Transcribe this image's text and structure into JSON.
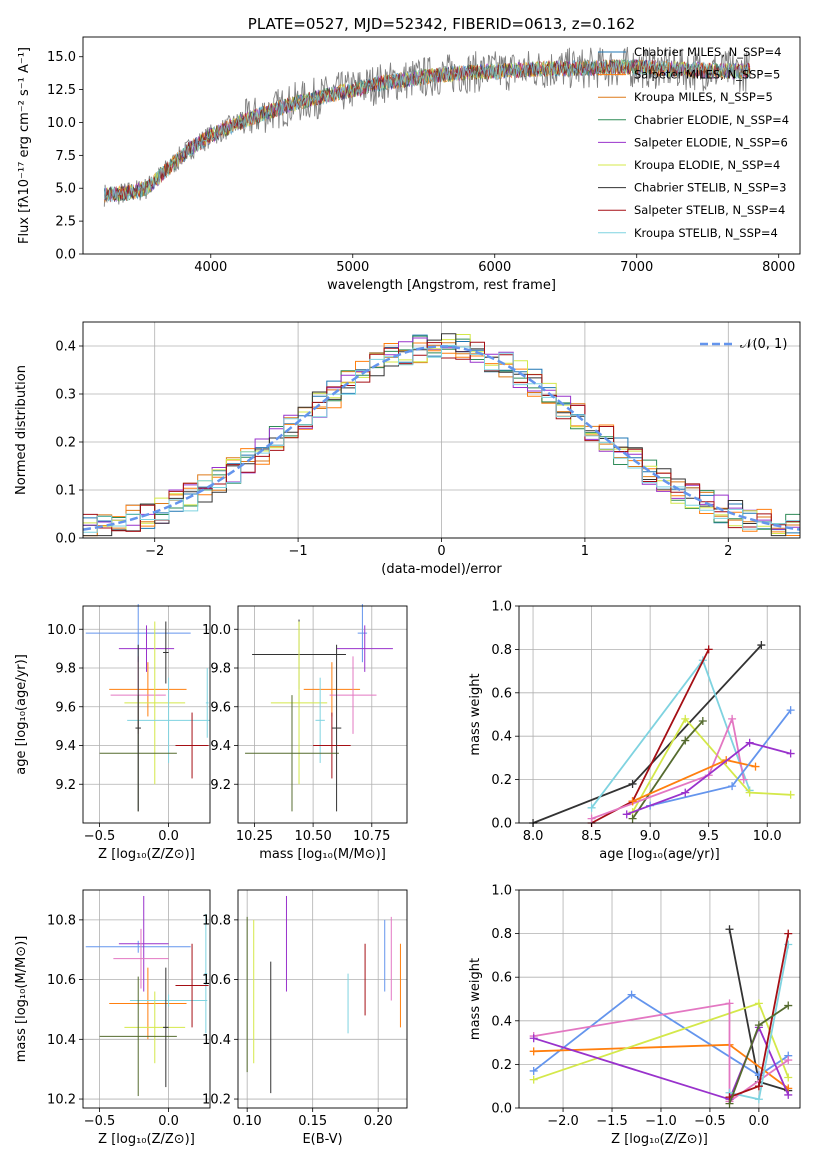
{
  "colors": {
    "axis": "#000000",
    "grid": "#b0b0b0",
    "data_spectrum": "#808080",
    "normal_curve": "#6495ed"
  },
  "chart_data": [
    {
      "id": "spectrum",
      "type": "line",
      "title": "PLATE=0527, MJD=52342, FIBERID=0613, z=0.162",
      "xlabel": "wavelength [Angstrom, rest frame]",
      "ylabel": "Flux [fλ10⁻¹⁷ erg cm⁻² s⁻¹ A⁻¹]",
      "xlim": [
        3100,
        8150
      ],
      "ylim": [
        0,
        16.5
      ],
      "xticks": [
        4000,
        5000,
        6000,
        7000,
        8000
      ],
      "yticks": [
        0.0,
        2.5,
        5.0,
        7.5,
        10.0,
        12.5,
        15.0
      ],
      "grid": false,
      "legend_position": "top-right",
      "data_curve": {
        "x": [
          3250,
          3400,
          3550,
          3700,
          3850,
          4000,
          4200,
          4400,
          4600,
          4800,
          5000,
          5200,
          5400,
          5600,
          5800,
          6000,
          6200,
          6400,
          6600,
          6800,
          7000,
          7200,
          7400,
          7600,
          7800
        ],
        "y": [
          4.5,
          4.6,
          5.0,
          6.5,
          8.0,
          9.0,
          10.0,
          10.8,
          11.5,
          12.0,
          12.5,
          13.0,
          13.3,
          13.6,
          13.8,
          13.9,
          14.0,
          14.1,
          14.1,
          14.2,
          14.2,
          14.1,
          14.0,
          13.9,
          13.9
        ]
      },
      "series": [
        {
          "name": "Chabrier MILES, N_SSP=4",
          "color": "#1f77b4"
        },
        {
          "name": "Salpeter MILES, N_SSP=5",
          "color": "#ff7f0e"
        },
        {
          "name": "Kroupa MILES, N_SSP=5",
          "color": "#dd7a1a"
        },
        {
          "name": "Chabrier ELODIE, N_SSP=4",
          "color": "#2e8b57"
        },
        {
          "name": "Salpeter ELODIE, N_SSP=6",
          "color": "#9932cc"
        },
        {
          "name": "Kroupa ELODIE, N_SSP=4",
          "color": "#d4e84a"
        },
        {
          "name": "Chabrier STELIB, N_SSP=3",
          "color": "#333333"
        },
        {
          "name": "Salpeter STELIB, N_SSP=4",
          "color": "#a50f15"
        },
        {
          "name": "Kroupa STELIB, N_SSP=4",
          "color": "#7fd3e0"
        }
      ]
    },
    {
      "id": "residuals",
      "type": "area",
      "xlabel": "(data-model)/error",
      "ylabel": "Normed distribution",
      "xlim": [
        -2.5,
        2.5
      ],
      "ylim": [
        0,
        0.45
      ],
      "xticks": [
        -2,
        -1,
        0,
        1,
        2
      ],
      "yticks": [
        0.0,
        0.1,
        0.2,
        0.3,
        0.4
      ],
      "grid": true,
      "legend": "𝒩(0, 1)",
      "legend_position": "top-right",
      "normal": {
        "mu": 0,
        "sigma": 1
      },
      "bin_width": 0.1
    },
    {
      "id": "age_vs_Z",
      "type": "scatter",
      "xlabel": "Z [log₁₀(Z/Z⊙)]",
      "ylabel": "age  [log₁₀(age/yr)]",
      "xlim": [
        -0.62,
        0.3
      ],
      "ylim": [
        9.0,
        10.12
      ],
      "xticks": [
        -0.5,
        0.0
      ],
      "yticks": [
        9.2,
        9.4,
        9.6,
        9.8,
        10.0
      ],
      "grid": true,
      "points": [
        {
          "x": -0.22,
          "xerr": 0.38,
          "y": 9.98,
          "yerr": 0.15,
          "color": "#6495ed"
        },
        {
          "x": -0.16,
          "xerr": 0.2,
          "y": 9.9,
          "yerr": 0.12,
          "color": "#9932cc"
        },
        {
          "x": -0.02,
          "xerr": 0.02,
          "y": 9.88,
          "yerr": 0.16,
          "color": "#333333"
        },
        {
          "x": -0.15,
          "xerr": 0.28,
          "y": 9.69,
          "yerr": 0.14,
          "color": "#ff7f0e"
        },
        {
          "x": -0.22,
          "xerr": 0.2,
          "y": 9.66,
          "yerr": 0.2,
          "color": "#e377c2"
        },
        {
          "x": -0.1,
          "xerr": 0.22,
          "y": 9.62,
          "yerr": 0.42,
          "color": "#d4e84a"
        },
        {
          "x": 0.28,
          "xerr": 0.01,
          "y": 9.62,
          "yerr": 0.18,
          "color": "#7fd3e0"
        },
        {
          "x": 0.0,
          "xerr": 0.3,
          "y": 9.53,
          "yerr": 0.22,
          "color": "#7fd3e0"
        },
        {
          "x": 0.17,
          "xerr": 0.12,
          "y": 9.4,
          "yerr": 0.17,
          "color": "#a50f15"
        },
        {
          "x": -0.22,
          "xerr": 0.28,
          "y": 9.36,
          "yerr": 0.3,
          "color": "#556b2f"
        },
        {
          "x": -0.22,
          "xerr": 0.02,
          "y": 9.49,
          "yerr": 0.43,
          "color": "#333333"
        }
      ]
    },
    {
      "id": "age_vs_mass",
      "type": "scatter",
      "xlabel": "mass [log₁₀(M/M⊙)]",
      "xlim": [
        10.18,
        10.9
      ],
      "ylim": [
        9.0,
        10.12
      ],
      "xticks": [
        10.25,
        10.5,
        10.75
      ],
      "yticks": [
        9.2,
        9.4,
        9.6,
        9.8,
        10.0
      ],
      "grid": true,
      "points": [
        {
          "x": 10.71,
          "xerr": 0.02,
          "y": 9.98,
          "yerr": 0.15,
          "color": "#6495ed"
        },
        {
          "x": 10.72,
          "xerr": 0.12,
          "y": 9.9,
          "yerr": 0.12,
          "color": "#9932cc"
        },
        {
          "x": 10.44,
          "xerr": 0.2,
          "y": 9.87,
          "yerr": 0.18,
          "color": "#333333"
        },
        {
          "x": 10.58,
          "xerr": 0.12,
          "y": 9.69,
          "yerr": 0.14,
          "color": "#ff7f0e"
        },
        {
          "x": 10.67,
          "xerr": 0.1,
          "y": 9.66,
          "yerr": 0.2,
          "color": "#e377c2"
        },
        {
          "x": 10.44,
          "xerr": 0.12,
          "y": 9.62,
          "yerr": 0.42,
          "color": "#d4e84a"
        },
        {
          "x": 10.53,
          "xerr": 0.02,
          "y": 9.53,
          "yerr": 0.22,
          "color": "#7fd3e0"
        },
        {
          "x": 10.58,
          "xerr": 0.08,
          "y": 9.4,
          "yerr": 0.17,
          "color": "#a50f15"
        },
        {
          "x": 10.41,
          "xerr": 0.2,
          "y": 9.36,
          "yerr": 0.3,
          "color": "#556b2f"
        },
        {
          "x": 10.6,
          "xerr": 0.02,
          "y": 9.49,
          "yerr": 0.43,
          "color": "#333333"
        }
      ]
    },
    {
      "id": "weight_vs_age",
      "type": "line",
      "xlabel": "age  [log₁₀(age/yr)]",
      "ylabel": "mass weight",
      "xlim": [
        7.88,
        10.28
      ],
      "ylim": [
        0,
        1.0
      ],
      "xticks": [
        8.0,
        8.5,
        9.0,
        9.5,
        10.0
      ],
      "yticks": [
        0.0,
        0.2,
        0.4,
        0.6,
        0.8,
        1.0
      ],
      "grid": true,
      "series": [
        {
          "color": "#333333",
          "x": [
            8.0,
            8.85,
            9.95
          ],
          "y": [
            0.0,
            0.18,
            0.82
          ]
        },
        {
          "color": "#7fd3e0",
          "x": [
            8.5,
            9.45,
            9.85
          ],
          "y": [
            0.07,
            0.75,
            0.15
          ]
        },
        {
          "color": "#a50f15",
          "x": [
            8.5,
            8.85,
            9.5
          ],
          "y": [
            0.0,
            0.1,
            0.8
          ]
        },
        {
          "color": "#d4e84a",
          "x": [
            8.85,
            9.3,
            9.85,
            10.2
          ],
          "y": [
            0.05,
            0.48,
            0.14,
            0.13
          ]
        },
        {
          "color": "#556b2f",
          "x": [
            8.85,
            9.3,
            9.45
          ],
          "y": [
            0.02,
            0.38,
            0.47
          ]
        },
        {
          "color": "#e377c2",
          "x": [
            8.5,
            9.5,
            9.7,
            9.8
          ],
          "y": [
            0.02,
            0.22,
            0.48,
            0.2
          ]
        },
        {
          "color": "#ff7f0e",
          "x": [
            8.85,
            9.65,
            9.9
          ],
          "y": [
            0.1,
            0.29,
            0.26
          ]
        },
        {
          "color": "#6495ed",
          "x": [
            9.0,
            9.7,
            10.2
          ],
          "y": [
            0.08,
            0.17,
            0.52
          ]
        },
        {
          "color": "#9932cc",
          "x": [
            8.8,
            9.3,
            9.85,
            10.2
          ],
          "y": [
            0.04,
            0.14,
            0.37,
            0.32
          ]
        }
      ]
    },
    {
      "id": "mass_vs_Z",
      "type": "scatter",
      "xlabel": "Z [log₁₀(Z/Z⊙)]",
      "ylabel": "mass [log₁₀(M/M⊙)]",
      "xlim": [
        -0.62,
        0.3
      ],
      "ylim": [
        10.17,
        10.9
      ],
      "xticks": [
        -0.5,
        0.0
      ],
      "yticks": [
        10.2,
        10.4,
        10.6,
        10.8
      ],
      "grid": true,
      "points": [
        {
          "x": -0.22,
          "xerr": 0.38,
          "y": 10.71,
          "yerr": 0.02,
          "color": "#6495ed"
        },
        {
          "x": -0.18,
          "xerr": 0.18,
          "y": 10.72,
          "yerr": 0.16,
          "color": "#9932cc"
        },
        {
          "x": -0.15,
          "xerr": 0.28,
          "y": 10.52,
          "yerr": 0.12,
          "color": "#ff7f0e"
        },
        {
          "x": -0.2,
          "xerr": 0.2,
          "y": 10.67,
          "yerr": 0.1,
          "color": "#e377c2"
        },
        {
          "x": -0.1,
          "xerr": 0.22,
          "y": 10.44,
          "yerr": 0.12,
          "color": "#d4e84a"
        },
        {
          "x": 0.0,
          "xerr": 0.28,
          "y": 10.53,
          "yerr": 0.02,
          "color": "#7fd3e0"
        },
        {
          "x": 0.27,
          "xerr": 0.01,
          "y": 10.62,
          "yerr": 0.2,
          "color": "#7fd3e0"
        },
        {
          "x": 0.17,
          "xerr": 0.12,
          "y": 10.58,
          "yerr": 0.14,
          "color": "#a50f15"
        },
        {
          "x": -0.22,
          "xerr": 0.28,
          "y": 10.41,
          "yerr": 0.2,
          "color": "#556b2f"
        },
        {
          "x": -0.02,
          "xerr": 0.02,
          "y": 10.44,
          "yerr": 0.2,
          "color": "#333333"
        }
      ]
    },
    {
      "id": "mass_vs_EBV",
      "type": "scatter",
      "xlabel": "E(B-V)",
      "xlim": [
        0.093,
        0.222
      ],
      "ylim": [
        10.17,
        10.9
      ],
      "xticks": [
        0.1,
        0.15,
        0.2
      ],
      "yticks": [
        10.2,
        10.4,
        10.6,
        10.8
      ],
      "grid": true,
      "points": [
        {
          "x": 0.1,
          "xerr": 0.0,
          "y": 10.55,
          "yerr": 0.26,
          "color": "#556b2f"
        },
        {
          "x": 0.105,
          "xerr": 0.0,
          "y": 10.56,
          "yerr": 0.24,
          "color": "#d4e84a"
        },
        {
          "x": 0.118,
          "xerr": 0.0,
          "y": 10.44,
          "yerr": 0.22,
          "color": "#333333"
        },
        {
          "x": 0.13,
          "xerr": 0.0,
          "y": 10.72,
          "yerr": 0.16,
          "color": "#9932cc"
        },
        {
          "x": 0.177,
          "xerr": 0.0,
          "y": 10.52,
          "yerr": 0.1,
          "color": "#7fd3e0"
        },
        {
          "x": 0.19,
          "xerr": 0.0,
          "y": 10.6,
          "yerr": 0.12,
          "color": "#a50f15"
        },
        {
          "x": 0.205,
          "xerr": 0.0,
          "y": 10.68,
          "yerr": 0.12,
          "color": "#6495ed"
        },
        {
          "x": 0.21,
          "xerr": 0.0,
          "y": 10.67,
          "yerr": 0.14,
          "color": "#e377c2"
        },
        {
          "x": 0.217,
          "xerr": 0.0,
          "y": 10.58,
          "yerr": 0.14,
          "color": "#ff7f0e"
        }
      ]
    },
    {
      "id": "weight_vs_Z",
      "type": "line",
      "xlabel": "Z [log₁₀(Z/Z⊙)]",
      "ylabel": "mass weight",
      "xlim": [
        -2.45,
        0.42
      ],
      "ylim": [
        0,
        1.0
      ],
      "xticks": [
        -2.0,
        -1.5,
        -1.0,
        -0.5,
        0.0
      ],
      "yticks": [
        0.0,
        0.2,
        0.4,
        0.6,
        0.8,
        1.0
      ],
      "grid": true,
      "series": [
        {
          "color": "#333333",
          "x": [
            -0.3,
            0.0,
            0.3
          ],
          "y": [
            0.82,
            0.12,
            0.08
          ]
        },
        {
          "color": "#6495ed",
          "x": [
            -2.3,
            -1.3,
            0.0,
            0.3
          ],
          "y": [
            0.17,
            0.52,
            0.15,
            0.24
          ]
        },
        {
          "color": "#ff7f0e",
          "x": [
            -2.3,
            -0.3,
            0.3
          ],
          "y": [
            0.26,
            0.29,
            0.09
          ]
        },
        {
          "color": "#d4e84a",
          "x": [
            -2.3,
            0.0,
            0.3
          ],
          "y": [
            0.13,
            0.48,
            0.14
          ]
        },
        {
          "color": "#e377c2",
          "x": [
            -2.3,
            -0.3,
            -0.3,
            0.3
          ],
          "y": [
            0.33,
            0.48,
            0.03,
            0.22
          ]
        },
        {
          "color": "#9932cc",
          "x": [
            -2.3,
            -0.3,
            0.0,
            0.3
          ],
          "y": [
            0.32,
            0.04,
            0.37,
            0.06
          ]
        },
        {
          "color": "#7fd3e0",
          "x": [
            -0.3,
            0.0,
            0.3
          ],
          "y": [
            0.07,
            0.04,
            0.75
          ]
        },
        {
          "color": "#a50f15",
          "x": [
            -0.3,
            0.0,
            0.3
          ],
          "y": [
            0.05,
            0.1,
            0.8
          ]
        },
        {
          "color": "#556b2f",
          "x": [
            -0.3,
            0.0,
            0.3
          ],
          "y": [
            0.02,
            0.38,
            0.47
          ]
        }
      ]
    }
  ]
}
